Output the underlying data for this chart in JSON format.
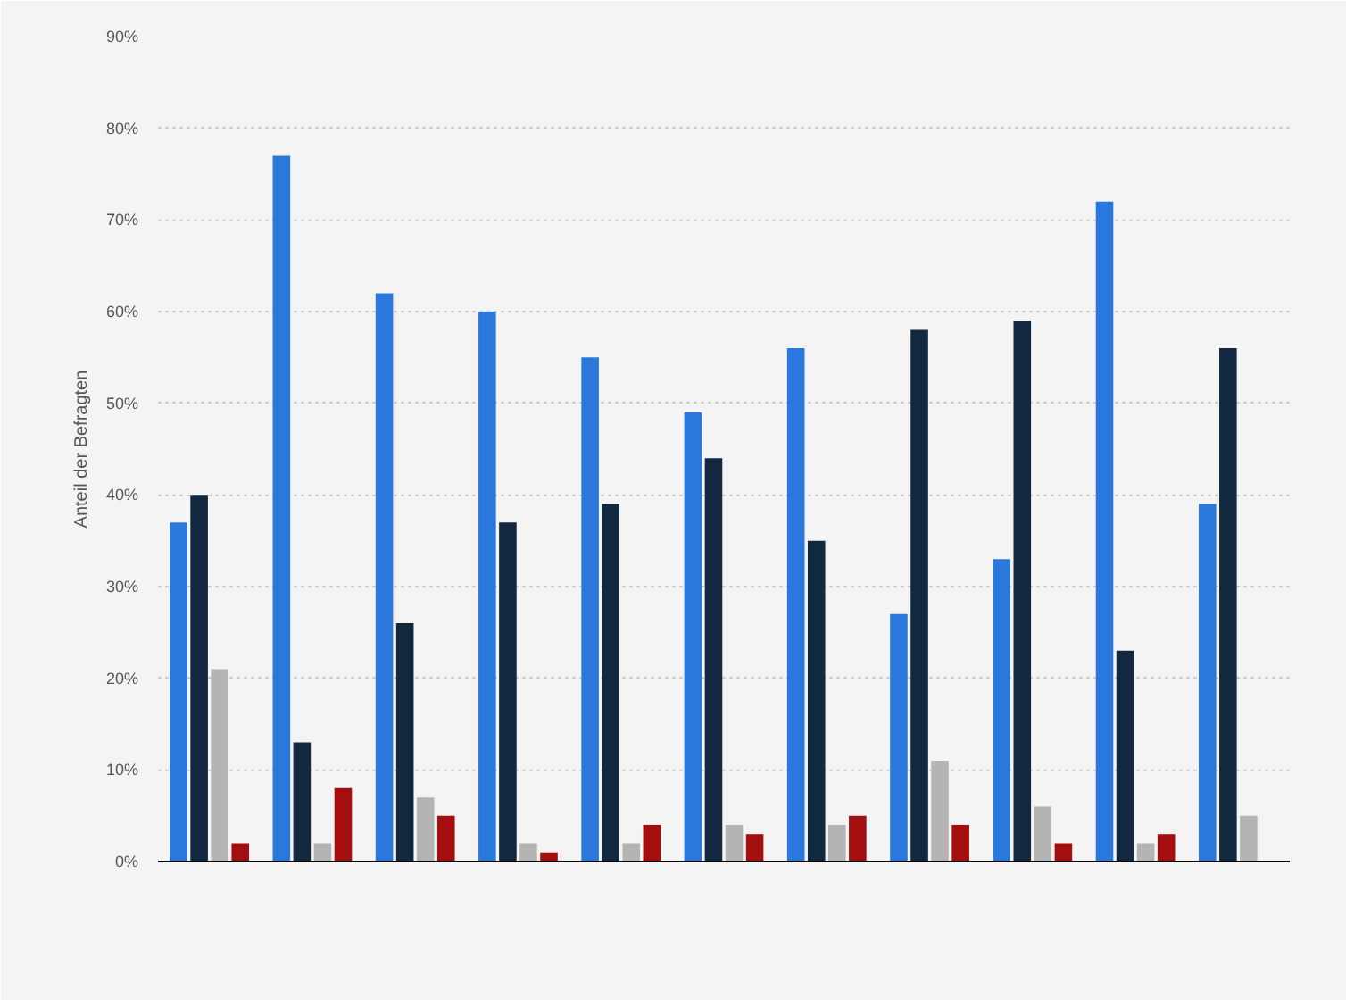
{
  "chart_data": {
    "type": "bar",
    "ylabel": "Anteil der Befragten",
    "categories": [
      null,
      null,
      null,
      null,
      null,
      null,
      null,
      null,
      null,
      null,
      null
    ],
    "series": [
      {
        "color": "#2b78dc",
        "values": [
          37,
          77,
          62,
          60,
          55,
          49,
          56,
          27,
          33,
          72,
          39
        ]
      },
      {
        "color": "#12283f",
        "values": [
          40,
          13,
          26,
          37,
          39,
          44,
          35,
          58,
          59,
          23,
          56
        ]
      },
      {
        "color": "#b4b4b4",
        "values": [
          21,
          2,
          7,
          2,
          2,
          4,
          4,
          11,
          6,
          2,
          5
        ]
      },
      {
        "color": "#a30f0f",
        "values": [
          2,
          8,
          5,
          1,
          4,
          3,
          5,
          4,
          2,
          3,
          null
        ]
      }
    ],
    "ylim": [
      0,
      90
    ],
    "yticks": [
      {
        "value": 0,
        "label": "0%"
      },
      {
        "value": 10,
        "label": "10%"
      },
      {
        "value": 20,
        "label": "20%"
      },
      {
        "value": 30,
        "label": "30%"
      },
      {
        "value": 40,
        "label": "40%"
      },
      {
        "value": 50,
        "label": "50%"
      },
      {
        "value": 60,
        "label": "60%"
      },
      {
        "value": 70,
        "label": "70%"
      },
      {
        "value": 80,
        "label": "80%"
      },
      {
        "value": 90,
        "label": "90%"
      }
    ],
    "grid": "y"
  }
}
